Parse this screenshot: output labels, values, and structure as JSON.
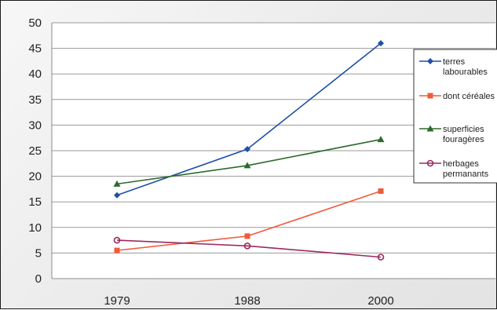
{
  "chart_data": {
    "type": "line",
    "title": "",
    "xlabel": "",
    "ylabel": "",
    "x": [
      "1979",
      "1988",
      "2000"
    ],
    "ylim": [
      0,
      50
    ],
    "yticks": [
      "0",
      "5",
      "10",
      "15",
      "20",
      "25",
      "30",
      "35",
      "40",
      "45",
      "50"
    ],
    "grid": true,
    "legend_position": "right",
    "series": [
      {
        "name": [
          "terres",
          "labourables"
        ],
        "values": [
          16.3,
          25.3,
          46
        ],
        "color": "#1f4fa8",
        "marker": "diamond"
      },
      {
        "name": [
          "dont céréales"
        ],
        "values": [
          5.5,
          8.3,
          17.1
        ],
        "color": "#ef5b3b",
        "marker": "square"
      },
      {
        "name": [
          "superficies",
          "fouragères"
        ],
        "values": [
          18.5,
          22.1,
          27.2
        ],
        "color": "#2d6b2d",
        "marker": "triangle"
      },
      {
        "name": [
          "herbages",
          "permanants"
        ],
        "values": [
          7.5,
          6.4,
          4.2
        ],
        "color": "#9b2a5e",
        "marker": "circle"
      }
    ]
  }
}
